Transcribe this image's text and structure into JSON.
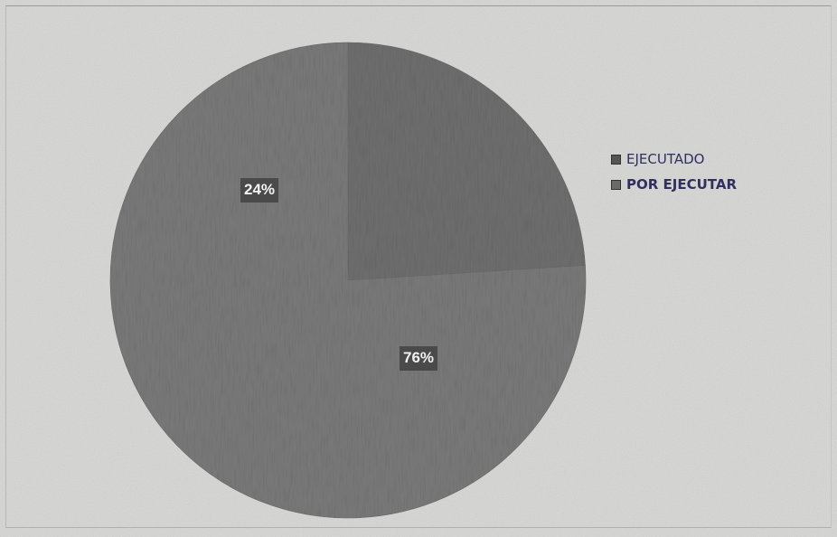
{
  "chart_data": {
    "type": "pie",
    "title": "",
    "categories": [
      "EJECUTADO",
      "POR EJECUTAR"
    ],
    "values": [
      24,
      76
    ],
    "data_labels": [
      "24%",
      "76%"
    ],
    "legend_position": "right",
    "colors": [
      "#6f6f6f",
      "#7a7a7a"
    ]
  },
  "legend": {
    "items": [
      {
        "label": "EJECUTADO",
        "color": "#555555"
      },
      {
        "label": "POR EJECUTAR",
        "color": "#6a6a6a"
      }
    ]
  }
}
